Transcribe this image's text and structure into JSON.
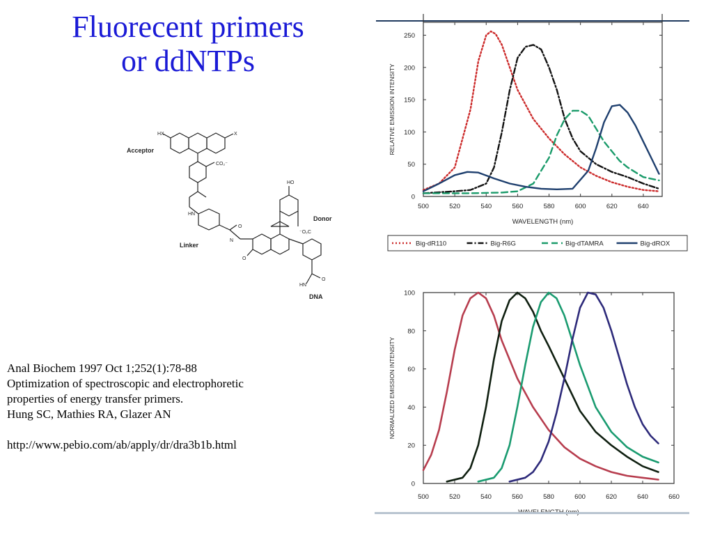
{
  "slide": {
    "title_line1": "Fluorecent primers",
    "title_line2": "or ddNTPs"
  },
  "structure": {
    "labels": {
      "acceptor": "Acceptor",
      "donor": "Donor",
      "linker": "Linker",
      "dna": "DNA"
    }
  },
  "citation": {
    "journal": "Anal Biochem 1997 Oct 1;252(1):78-88",
    "title_line1": "Optimization of spectroscopic and electrophoretic",
    "title_line2": "properties of energy transfer primers.",
    "authors": "Hung SC, Mathies RA, Glazer AN",
    "url": "http://www.pebio.com/ab/apply/dr/dra3b1b.html"
  },
  "chart_data": [
    {
      "type": "line",
      "xlabel": "WAVELENGTH (nm)",
      "ylabel": "RELATIVE EMISSION INTENSITY",
      "xlim": [
        500,
        652
      ],
      "ylim": [
        0,
        270
      ],
      "xticks": [
        500,
        520,
        540,
        560,
        580,
        600,
        620,
        640
      ],
      "yticks": [
        0,
        50,
        100,
        150,
        200,
        250
      ],
      "legend_position": "bottom",
      "series": [
        {
          "name": "Big-dR110",
          "color": "#cc2a2a",
          "dash": "dotted",
          "x": [
            500,
            510,
            520,
            530,
            535,
            540,
            543,
            546,
            550,
            555,
            560,
            570,
            580,
            590,
            600,
            610,
            620,
            630,
            640,
            650
          ],
          "y": [
            10,
            20,
            45,
            135,
            210,
            250,
            256,
            252,
            235,
            200,
            165,
            120,
            90,
            65,
            45,
            32,
            22,
            15,
            10,
            8
          ]
        },
        {
          "name": "Big-R6G",
          "color": "#111111",
          "dash": "dashdot",
          "x": [
            500,
            520,
            530,
            540,
            545,
            550,
            555,
            560,
            565,
            570,
            575,
            580,
            585,
            590,
            595,
            600,
            610,
            620,
            630,
            640,
            650
          ],
          "y": [
            5,
            8,
            10,
            20,
            45,
            100,
            165,
            215,
            232,
            235,
            228,
            200,
            165,
            120,
            90,
            70,
            50,
            38,
            30,
            20,
            12
          ]
        },
        {
          "name": "Big-dTAMRA",
          "color": "#1a9b6a",
          "dash": "dashed",
          "x": [
            500,
            530,
            550,
            560,
            570,
            580,
            585,
            590,
            595,
            600,
            605,
            610,
            615,
            620,
            625,
            630,
            640,
            650
          ],
          "y": [
            5,
            5,
            6,
            8,
            20,
            60,
            95,
            120,
            133,
            133,
            125,
            105,
            85,
            70,
            55,
            45,
            30,
            25
          ]
        },
        {
          "name": "Big-dROX",
          "color": "#1e3f6e",
          "dash": "solid",
          "x": [
            500,
            510,
            520,
            528,
            535,
            545,
            555,
            565,
            575,
            585,
            595,
            605,
            610,
            615,
            620,
            625,
            630,
            635,
            640,
            645,
            650
          ],
          "y": [
            8,
            20,
            33,
            38,
            37,
            28,
            20,
            15,
            12,
            11,
            12,
            40,
            75,
            115,
            140,
            142,
            130,
            110,
            85,
            60,
            35
          ]
        }
      ]
    },
    {
      "type": "line",
      "xlabel": "WAVELENGTH (nm)",
      "ylabel": "NORMALIZED EMISSION INTENSITY",
      "xlim": [
        500,
        660
      ],
      "ylim": [
        0,
        100
      ],
      "xticks": [
        500,
        520,
        540,
        560,
        580,
        600,
        620,
        640,
        660
      ],
      "yticks": [
        0,
        20,
        40,
        60,
        80,
        100
      ],
      "series": [
        {
          "color": "#b73d4e",
          "x": [
            500,
            505,
            510,
            515,
            520,
            525,
            530,
            535,
            540,
            545,
            550,
            560,
            570,
            580,
            590,
            600,
            610,
            620,
            630,
            640,
            650
          ],
          "y": [
            7,
            15,
            28,
            48,
            70,
            88,
            97,
            100,
            97,
            88,
            75,
            55,
            40,
            28,
            19,
            13,
            9,
            6,
            4,
            3,
            2
          ]
        },
        {
          "color": "#0f1f10",
          "x": [
            515,
            525,
            530,
            535,
            540,
            545,
            550,
            555,
            560,
            565,
            570,
            575,
            580,
            590,
            600,
            610,
            620,
            630,
            640,
            650
          ],
          "y": [
            1,
            3,
            8,
            20,
            40,
            65,
            85,
            96,
            100,
            97,
            90,
            80,
            72,
            55,
            38,
            27,
            20,
            14,
            9,
            6
          ]
        },
        {
          "color": "#1a9b70",
          "x": [
            535,
            545,
            550,
            555,
            560,
            565,
            570,
            575,
            580,
            585,
            590,
            595,
            600,
            610,
            620,
            630,
            640,
            650
          ],
          "y": [
            1,
            3,
            8,
            20,
            40,
            62,
            82,
            95,
            100,
            97,
            88,
            75,
            62,
            40,
            27,
            19,
            14,
            11
          ]
        },
        {
          "color": "#2d2a7a",
          "x": [
            555,
            565,
            570,
            575,
            580,
            585,
            590,
            595,
            600,
            605,
            610,
            615,
            620,
            625,
            630,
            635,
            640,
            645,
            650
          ],
          "y": [
            1,
            3,
            6,
            12,
            22,
            37,
            55,
            75,
            92,
            100,
            99,
            92,
            80,
            66,
            52,
            40,
            31,
            25,
            21
          ]
        }
      ]
    }
  ]
}
